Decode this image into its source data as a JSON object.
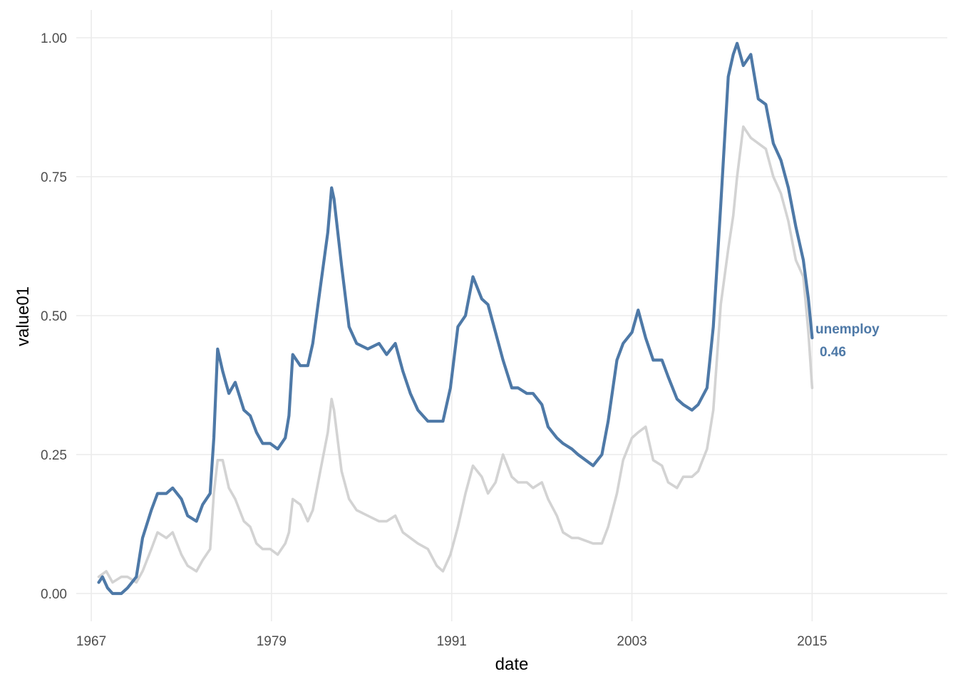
{
  "chart_data": {
    "type": "line",
    "xlabel": "date",
    "ylabel": "value01",
    "xlim": [
      "1966-01-01",
      "2024-01-01"
    ],
    "ylim": [
      -0.05,
      1.05
    ],
    "x_ticks": [
      "1967",
      "1979",
      "1991",
      "2003",
      "2015"
    ],
    "y_ticks": [
      "0.00",
      "0.25",
      "0.50",
      "0.75",
      "1.00"
    ],
    "grid": true,
    "colors": {
      "highlight": "#4e79a7",
      "context": "#d3d3d3"
    },
    "end_label": {
      "series": "unemploy",
      "value": "0.46"
    },
    "series": [
      {
        "name": "unemploy",
        "role": "highlight",
        "points": [
          [
            "1967-07-01",
            0.02
          ],
          [
            "1967-10-01",
            0.03
          ],
          [
            "1968-02-01",
            0.01
          ],
          [
            "1968-06-01",
            0.0
          ],
          [
            "1969-01-01",
            0.0
          ],
          [
            "1969-06-01",
            0.01
          ],
          [
            "1970-01-01",
            0.03
          ],
          [
            "1970-06-01",
            0.1
          ],
          [
            "1971-01-01",
            0.15
          ],
          [
            "1971-06-01",
            0.18
          ],
          [
            "1972-01-01",
            0.18
          ],
          [
            "1972-06-01",
            0.19
          ],
          [
            "1973-01-01",
            0.17
          ],
          [
            "1973-06-01",
            0.14
          ],
          [
            "1974-01-01",
            0.13
          ],
          [
            "1974-06-01",
            0.16
          ],
          [
            "1974-12-01",
            0.18
          ],
          [
            "1975-03-01",
            0.28
          ],
          [
            "1975-06-01",
            0.44
          ],
          [
            "1975-10-01",
            0.4
          ],
          [
            "1976-03-01",
            0.36
          ],
          [
            "1976-08-01",
            0.38
          ],
          [
            "1977-03-01",
            0.33
          ],
          [
            "1977-08-01",
            0.32
          ],
          [
            "1978-01-01",
            0.29
          ],
          [
            "1978-06-01",
            0.27
          ],
          [
            "1978-12-01",
            0.27
          ],
          [
            "1979-06-01",
            0.26
          ],
          [
            "1979-12-01",
            0.28
          ],
          [
            "1980-03-01",
            0.32
          ],
          [
            "1980-06-01",
            0.43
          ],
          [
            "1980-12-01",
            0.41
          ],
          [
            "1981-06-01",
            0.41
          ],
          [
            "1981-10-01",
            0.45
          ],
          [
            "1982-04-01",
            0.55
          ],
          [
            "1982-10-01",
            0.65
          ],
          [
            "1983-01-01",
            0.73
          ],
          [
            "1983-03-01",
            0.71
          ],
          [
            "1983-09-01",
            0.59
          ],
          [
            "1984-03-01",
            0.48
          ],
          [
            "1984-09-01",
            0.45
          ],
          [
            "1985-06-01",
            0.44
          ],
          [
            "1986-03-01",
            0.45
          ],
          [
            "1986-09-01",
            0.43
          ],
          [
            "1987-04-01",
            0.45
          ],
          [
            "1987-10-01",
            0.4
          ],
          [
            "1988-04-01",
            0.36
          ],
          [
            "1988-10-01",
            0.33
          ],
          [
            "1989-06-01",
            0.31
          ],
          [
            "1990-01-01",
            0.31
          ],
          [
            "1990-06-01",
            0.31
          ],
          [
            "1990-12-01",
            0.37
          ],
          [
            "1991-06-01",
            0.48
          ],
          [
            "1991-12-01",
            0.5
          ],
          [
            "1992-06-01",
            0.57
          ],
          [
            "1993-01-01",
            0.53
          ],
          [
            "1993-06-01",
            0.52
          ],
          [
            "1993-12-01",
            0.47
          ],
          [
            "1994-06-01",
            0.42
          ],
          [
            "1995-01-01",
            0.37
          ],
          [
            "1995-06-01",
            0.37
          ],
          [
            "1996-01-01",
            0.36
          ],
          [
            "1996-06-01",
            0.36
          ],
          [
            "1997-01-01",
            0.34
          ],
          [
            "1997-06-01",
            0.3
          ],
          [
            "1998-01-01",
            0.28
          ],
          [
            "1998-06-01",
            0.27
          ],
          [
            "1999-01-01",
            0.26
          ],
          [
            "1999-06-01",
            0.25
          ],
          [
            "2000-06-01",
            0.23
          ],
          [
            "2001-01-01",
            0.25
          ],
          [
            "2001-06-01",
            0.31
          ],
          [
            "2002-01-01",
            0.42
          ],
          [
            "2002-06-01",
            0.45
          ],
          [
            "2003-01-01",
            0.47
          ],
          [
            "2003-06-01",
            0.51
          ],
          [
            "2003-12-01",
            0.46
          ],
          [
            "2004-06-01",
            0.42
          ],
          [
            "2005-01-01",
            0.42
          ],
          [
            "2005-06-01",
            0.39
          ],
          [
            "2006-01-01",
            0.35
          ],
          [
            "2006-06-01",
            0.34
          ],
          [
            "2007-01-01",
            0.33
          ],
          [
            "2007-06-01",
            0.34
          ],
          [
            "2008-01-01",
            0.37
          ],
          [
            "2008-06-01",
            0.48
          ],
          [
            "2008-12-01",
            0.7
          ],
          [
            "2009-06-01",
            0.93
          ],
          [
            "2009-10-01",
            0.97
          ],
          [
            "2010-01-01",
            0.99
          ],
          [
            "2010-06-01",
            0.95
          ],
          [
            "2010-12-01",
            0.97
          ],
          [
            "2011-06-01",
            0.89
          ],
          [
            "2011-12-01",
            0.88
          ],
          [
            "2012-06-01",
            0.81
          ],
          [
            "2012-12-01",
            0.78
          ],
          [
            "2013-06-01",
            0.73
          ],
          [
            "2013-12-01",
            0.66
          ],
          [
            "2014-06-01",
            0.6
          ],
          [
            "2014-10-01",
            0.53
          ],
          [
            "2015-01-01",
            0.46
          ]
        ]
      },
      {
        "name": "",
        "role": "context",
        "points": [
          [
            "1967-07-01",
            0.03
          ],
          [
            "1968-01-01",
            0.04
          ],
          [
            "1968-06-01",
            0.02
          ],
          [
            "1969-01-01",
            0.03
          ],
          [
            "1969-06-01",
            0.03
          ],
          [
            "1970-01-01",
            0.02
          ],
          [
            "1970-06-01",
            0.04
          ],
          [
            "1971-01-01",
            0.08
          ],
          [
            "1971-06-01",
            0.11
          ],
          [
            "1972-01-01",
            0.1
          ],
          [
            "1972-06-01",
            0.11
          ],
          [
            "1973-01-01",
            0.07
          ],
          [
            "1973-06-01",
            0.05
          ],
          [
            "1974-01-01",
            0.04
          ],
          [
            "1974-06-01",
            0.06
          ],
          [
            "1974-12-01",
            0.08
          ],
          [
            "1975-03-01",
            0.18
          ],
          [
            "1975-06-01",
            0.24
          ],
          [
            "1975-10-01",
            0.24
          ],
          [
            "1976-03-01",
            0.19
          ],
          [
            "1976-08-01",
            0.17
          ],
          [
            "1977-03-01",
            0.13
          ],
          [
            "1977-08-01",
            0.12
          ],
          [
            "1978-01-01",
            0.09
          ],
          [
            "1978-06-01",
            0.08
          ],
          [
            "1978-12-01",
            0.08
          ],
          [
            "1979-06-01",
            0.07
          ],
          [
            "1979-12-01",
            0.09
          ],
          [
            "1980-03-01",
            0.11
          ],
          [
            "1980-06-01",
            0.17
          ],
          [
            "1980-12-01",
            0.16
          ],
          [
            "1981-06-01",
            0.13
          ],
          [
            "1981-10-01",
            0.15
          ],
          [
            "1982-04-01",
            0.22
          ],
          [
            "1982-10-01",
            0.29
          ],
          [
            "1983-01-01",
            0.35
          ],
          [
            "1983-03-01",
            0.33
          ],
          [
            "1983-09-01",
            0.22
          ],
          [
            "1984-03-01",
            0.17
          ],
          [
            "1984-09-01",
            0.15
          ],
          [
            "1985-06-01",
            0.14
          ],
          [
            "1986-03-01",
            0.13
          ],
          [
            "1986-09-01",
            0.13
          ],
          [
            "1987-04-01",
            0.14
          ],
          [
            "1987-10-01",
            0.11
          ],
          [
            "1988-04-01",
            0.1
          ],
          [
            "1988-10-01",
            0.09
          ],
          [
            "1989-06-01",
            0.08
          ],
          [
            "1990-01-01",
            0.05
          ],
          [
            "1990-06-01",
            0.04
          ],
          [
            "1990-12-01",
            0.07
          ],
          [
            "1991-06-01",
            0.12
          ],
          [
            "1991-12-01",
            0.18
          ],
          [
            "1992-06-01",
            0.23
          ],
          [
            "1993-01-01",
            0.21
          ],
          [
            "1993-06-01",
            0.18
          ],
          [
            "1993-12-01",
            0.2
          ],
          [
            "1994-06-01",
            0.25
          ],
          [
            "1995-01-01",
            0.21
          ],
          [
            "1995-06-01",
            0.2
          ],
          [
            "1996-01-01",
            0.2
          ],
          [
            "1996-06-01",
            0.19
          ],
          [
            "1997-01-01",
            0.2
          ],
          [
            "1997-06-01",
            0.17
          ],
          [
            "1998-01-01",
            0.14
          ],
          [
            "1998-06-01",
            0.11
          ],
          [
            "1999-01-01",
            0.1
          ],
          [
            "1999-06-01",
            0.1
          ],
          [
            "2000-06-01",
            0.09
          ],
          [
            "2001-01-01",
            0.09
          ],
          [
            "2001-06-01",
            0.12
          ],
          [
            "2002-01-01",
            0.18
          ],
          [
            "2002-06-01",
            0.24
          ],
          [
            "2003-01-01",
            0.28
          ],
          [
            "2003-06-01",
            0.29
          ],
          [
            "2003-12-01",
            0.3
          ],
          [
            "2004-06-01",
            0.24
          ],
          [
            "2005-01-01",
            0.23
          ],
          [
            "2005-06-01",
            0.2
          ],
          [
            "2006-01-01",
            0.19
          ],
          [
            "2006-06-01",
            0.21
          ],
          [
            "2007-01-01",
            0.21
          ],
          [
            "2007-06-01",
            0.22
          ],
          [
            "2008-01-01",
            0.26
          ],
          [
            "2008-06-01",
            0.33
          ],
          [
            "2008-12-01",
            0.52
          ],
          [
            "2009-06-01",
            0.62
          ],
          [
            "2009-10-01",
            0.68
          ],
          [
            "2010-01-01",
            0.75
          ],
          [
            "2010-06-01",
            0.84
          ],
          [
            "2010-12-01",
            0.82
          ],
          [
            "2011-06-01",
            0.81
          ],
          [
            "2011-12-01",
            0.8
          ],
          [
            "2012-06-01",
            0.75
          ],
          [
            "2012-12-01",
            0.72
          ],
          [
            "2013-06-01",
            0.67
          ],
          [
            "2013-12-01",
            0.6
          ],
          [
            "2014-06-01",
            0.57
          ],
          [
            "2014-10-01",
            0.47
          ],
          [
            "2015-01-01",
            0.37
          ]
        ]
      }
    ]
  }
}
